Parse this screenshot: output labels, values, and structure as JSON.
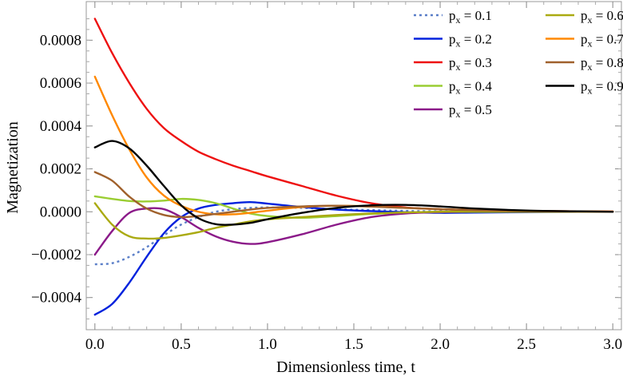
{
  "chart_data": {
    "type": "line",
    "title": "",
    "xlabel": "Dimensionless time, t",
    "ylabel": "Magnetization",
    "xlim": [
      -0.05,
      3.05
    ],
    "ylim": [
      -0.00055,
      0.00098
    ],
    "xticks": [
      0.0,
      0.5,
      1.0,
      1.5,
      2.0,
      2.5,
      3.0
    ],
    "xtick_labels": [
      "0.0",
      "0.5",
      "1.0",
      "1.5",
      "2.0",
      "2.5",
      "3.0"
    ],
    "yticks": [
      -0.0004,
      -0.0002,
      0.0,
      0.0002,
      0.0004,
      0.0006,
      0.0008
    ],
    "ytick_labels": [
      "−0.0004",
      "−0.0002",
      "0.0000",
      "0.0002",
      "0.0004",
      "0.0006",
      "0.0008"
    ],
    "legend_position": "top-right",
    "x": [
      0.0,
      0.1,
      0.2,
      0.3,
      0.4,
      0.5,
      0.6,
      0.7,
      0.8,
      0.9,
      1.0,
      1.2,
      1.4,
      1.6,
      1.8,
      2.0,
      2.2,
      2.5,
      2.8,
      3.0
    ],
    "series": [
      {
        "name": "0.1",
        "color": "#5b7fc8",
        "dashed": true,
        "values": [
          -0.000245,
          -0.00024,
          -0.00021,
          -0.000165,
          -0.00011,
          -6e-05,
          -2.5e-05,
          0.0,
          1.2e-05,
          1.8e-05,
          2e-05,
          1.8e-05,
          1.2e-05,
          8e-06,
          4e-06,
          2e-06,
          0.0,
          0.0,
          0.0,
          0.0
        ]
      },
      {
        "name": "0.2",
        "color": "#0022dd",
        "dashed": false,
        "values": [
          -0.00048,
          -0.00043,
          -0.00033,
          -0.00021,
          -0.0001,
          -2.5e-05,
          1.5e-05,
          3.2e-05,
          4e-05,
          4.5e-05,
          3.8e-05,
          2.2e-05,
          1e-05,
          3e-06,
          -2e-06,
          -5e-06,
          -4e-06,
          -2e-06,
          0.0,
          0.0
        ]
      },
      {
        "name": "0.3",
        "color": "#ee1111",
        "dashed": false,
        "values": [
          0.0009,
          0.00074,
          0.0006,
          0.00048,
          0.00039,
          0.00033,
          0.00028,
          0.000245,
          0.000215,
          0.00019,
          0.000165,
          0.00012,
          7.5e-05,
          4e-05,
          2e-05,
          1.2e-05,
          8e-06,
          4e-06,
          2e-06,
          1e-06
        ]
      },
      {
        "name": "0.4",
        "color": "#9acd32",
        "dashed": false,
        "values": [
          7.2e-05,
          6e-05,
          5e-05,
          4.8e-05,
          5.2e-05,
          6e-05,
          5.5e-05,
          4e-05,
          1.5e-05,
          -8e-06,
          -2e-05,
          -2.8e-05,
          -2e-05,
          -1e-05,
          -4e-06,
          0.0,
          1e-06,
          0.0,
          0.0,
          0.0
        ]
      },
      {
        "name": "0.5",
        "color": "#8b1a89",
        "dashed": false,
        "values": [
          -0.0002,
          -9e-05,
          -5e-06,
          1.5e-05,
          1.2e-05,
          -2.5e-05,
          -7.5e-05,
          -0.000115,
          -0.00014,
          -0.00015,
          -0.000142,
          -0.000105,
          -6e-05,
          -2.5e-05,
          -8e-06,
          -2e-06,
          0.0,
          0.0,
          0.0,
          0.0
        ]
      },
      {
        "name": "0.6",
        "color": "#aaaa11",
        "dashed": false,
        "values": [
          4e-05,
          -6e-05,
          -0.000115,
          -0.000125,
          -0.000122,
          -0.00011,
          -9.5e-05,
          -7.5e-05,
          -6e-05,
          -4.5e-05,
          -3.5e-05,
          -2.5e-05,
          -1.5e-05,
          -8e-06,
          -3e-06,
          0.0,
          0.0,
          0.0,
          0.0,
          0.0
        ]
      },
      {
        "name": "0.7",
        "color": "#ff8800",
        "dashed": false,
        "values": [
          0.00063,
          0.00045,
          0.00029,
          0.00016,
          7.5e-05,
          2.8e-05,
          0.0,
          -1.2e-05,
          -1.2e-05,
          -5e-06,
          5e-06,
          2.2e-05,
          2.8e-05,
          2.5e-05,
          1.8e-05,
          1.2e-05,
          8e-06,
          4e-06,
          2e-06,
          1e-06
        ]
      },
      {
        "name": "0.8",
        "color": "#a0612c",
        "dashed": false,
        "values": [
          0.000185,
          0.000145,
          7e-05,
          1.5e-05,
          -1.5e-05,
          -2.5e-05,
          -2e-05,
          -1e-05,
          -0.0,
          1e-05,
          1.8e-05,
          2.5e-05,
          2.8e-05,
          2.4e-05,
          1.8e-05,
          1.2e-05,
          7e-06,
          3e-06,
          1e-06,
          0.0
        ]
      },
      {
        "name": "0.9",
        "color": "#000000",
        "dashed": false,
        "values": [
          0.0003,
          0.00033,
          0.000295,
          0.000215,
          0.00012,
          3e-05,
          -3e-05,
          -5.8e-05,
          -6e-05,
          -5.2e-05,
          -3.5e-05,
          -5e-06,
          1.8e-05,
          3e-05,
          3.2e-05,
          2.5e-05,
          1.5e-05,
          6e-06,
          2e-06,
          0.0
        ]
      }
    ],
    "legend_prefix": "p",
    "legend_subscript": "x",
    "legend_eq": " = "
  }
}
